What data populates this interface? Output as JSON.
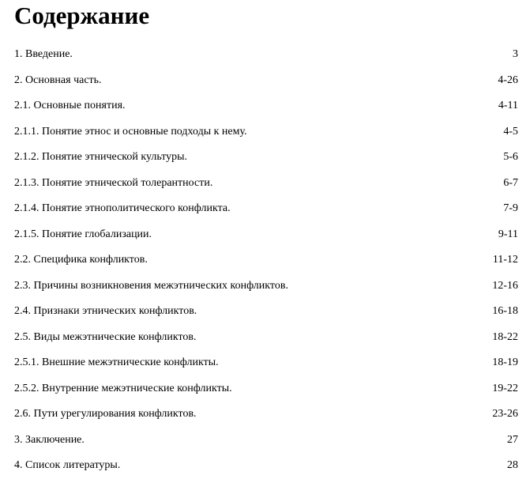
{
  "title": "Содержание",
  "entries": [
    {
      "label": "1. Введение.",
      "pages": "3"
    },
    {
      "label": "2. Основная часть.",
      "pages": "4-26"
    },
    {
      "label": "2.1. Основные понятия.",
      "pages": "4-11"
    },
    {
      "label": "2.1.1. Понятие этнос и основные подходы к нему.",
      "pages": "4-5"
    },
    {
      "label": "2.1.2. Понятие этнической культуры.",
      "pages": "5-6"
    },
    {
      "label": "2.1.3. Понятие этнической толерантности.",
      "pages": "6-7"
    },
    {
      "label": "2.1.4. Понятие этнополитического конфликта.",
      "pages": "7-9"
    },
    {
      "label": "2.1.5. Понятие глобализации.",
      "pages": "9-11"
    },
    {
      "label": "2.2. Специфика конфликтов.",
      "pages": "11-12"
    },
    {
      "label": "2.3. Причины возникновения межэтнических конфликтов.",
      "pages": "12-16"
    },
    {
      "label": "2.4. Признаки этнических конфликтов.",
      "pages": "16-18"
    },
    {
      "label": "2.5. Виды межэтнические конфликтов.",
      "pages": "18-22"
    },
    {
      "label": "2.5.1. Внешние межэтнические конфликты.",
      "pages": "18-19"
    },
    {
      "label": "2.5.2. Внутренние межэтнические конфликты.",
      "pages": "19-22"
    },
    {
      "label": "2.6. Пути урегулирования конфликтов.",
      "pages": "23-26"
    },
    {
      "label": "3. Заключение.",
      "pages": "27"
    },
    {
      "label": "4. Список литературы.",
      "pages": "28"
    }
  ]
}
